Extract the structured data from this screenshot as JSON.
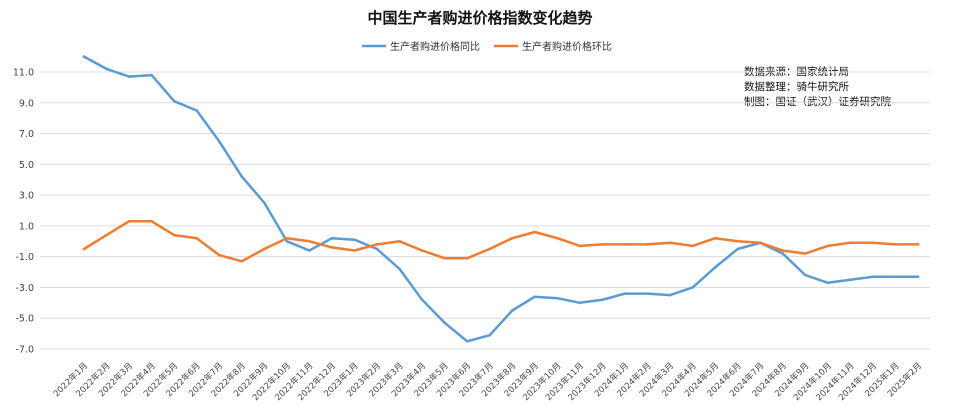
{
  "chart_data": {
    "type": "line",
    "title": "中国生产者购进价格指数变化趋势",
    "xlabel": "",
    "ylabel": "",
    "ylim": [
      -7.0,
      12.0
    ],
    "y_ticks": [
      "11.0",
      "9.0",
      "7.0",
      "5.0",
      "3.0",
      "1.0",
      "-1.0",
      "-3.0",
      "-5.0",
      "-7.0"
    ],
    "grid": "horizontal",
    "legend": "top-center",
    "categories": [
      "2022年1月",
      "2022年2月",
      "2022年3月",
      "2022年4月",
      "2022年5月",
      "2022年6月",
      "2022年7月",
      "2022年8月",
      "2022年9月",
      "2022年10月",
      "2022年11月",
      "2022年12月",
      "2023年1月",
      "2023年2月",
      "2023年3月",
      "2023年4月",
      "2023年5月",
      "2023年6月",
      "2023年7月",
      "2023年8月",
      "2023年9月",
      "2023年10月",
      "2023年11月",
      "2023年12月",
      "2024年1月",
      "2024年2月",
      "2024年3月",
      "2024年4月",
      "2024年5月",
      "2024年6月",
      "2024年7月",
      "2024年8月",
      "2024年9月",
      "2024年10月",
      "2024年11月",
      "2024年12月",
      "2025年1月",
      "2025年2月"
    ],
    "series": [
      {
        "name": "生产者购进价格同比",
        "color": "#5b9bd5",
        "values": [
          12.0,
          11.2,
          10.7,
          10.8,
          9.1,
          8.5,
          6.5,
          4.2,
          2.5,
          0.0,
          -0.6,
          0.2,
          0.1,
          -0.5,
          -1.8,
          -3.8,
          -5.3,
          -6.5,
          -6.1,
          -4.5,
          -3.6,
          -3.7,
          -4.0,
          -3.8,
          -3.4,
          -3.4,
          -3.5,
          -3.0,
          -1.7,
          -0.5,
          -0.1,
          -0.8,
          -2.2,
          -2.7,
          -2.5,
          -2.3,
          -2.3,
          -2.3
        ]
      },
      {
        "name": "生产者购进价格环比",
        "color": "#ed7d31",
        "values": [
          -0.5,
          0.4,
          1.3,
          1.3,
          0.4,
          0.2,
          -0.9,
          -1.3,
          -0.5,
          0.2,
          0.0,
          -0.4,
          -0.6,
          -0.2,
          0.0,
          -0.6,
          -1.1,
          -1.1,
          -0.5,
          0.2,
          0.6,
          0.2,
          -0.3,
          -0.2,
          -0.2,
          -0.2,
          -0.1,
          -0.3,
          0.2,
          0.0,
          -0.1,
          -0.6,
          -0.8,
          -0.3,
          -0.1,
          -0.1,
          -0.2,
          -0.2
        ]
      }
    ],
    "annotations": [
      "数据来源：国家统计局",
      "数据整理：骑牛研究所",
      "制图：国证（武汉）证券研究院"
    ]
  }
}
